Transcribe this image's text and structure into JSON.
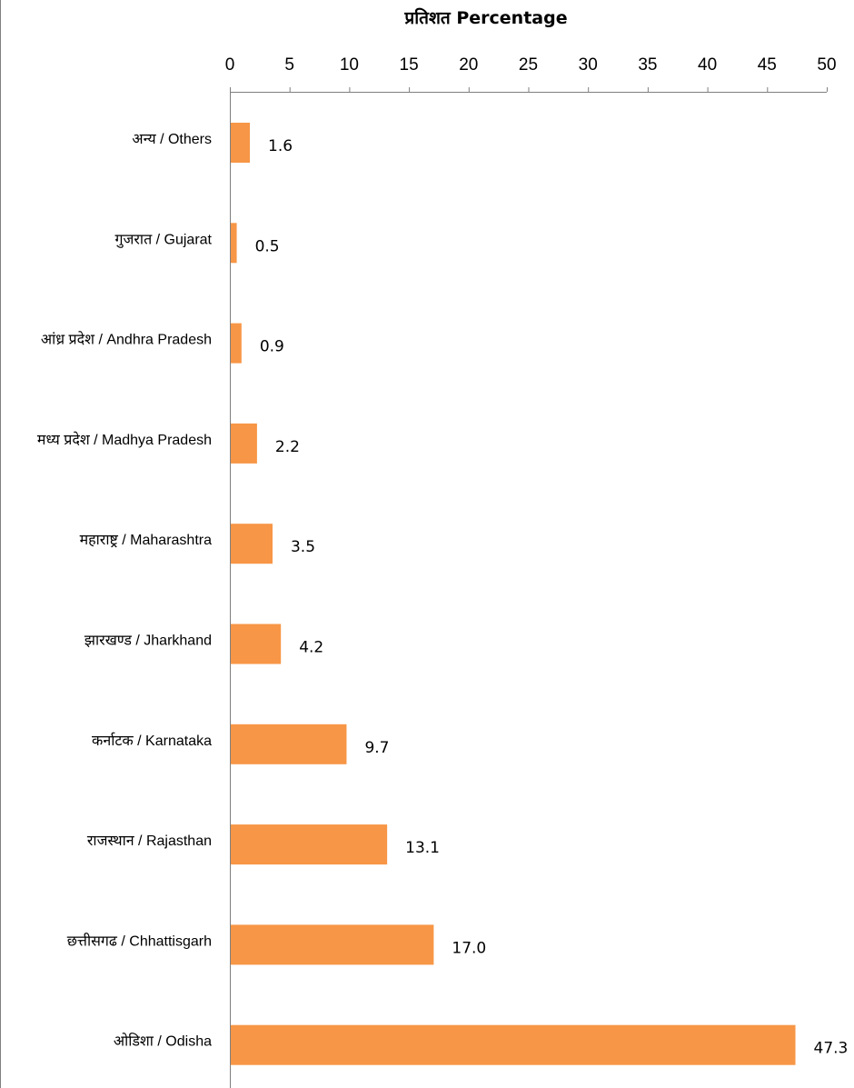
{
  "chart_data": {
    "type": "bar",
    "orientation": "horizontal",
    "title": "",
    "xlabel": "प्रतिशत Percentage",
    "ylabel": "",
    "xlim": [
      0,
      50
    ],
    "x_ticks": [
      "0",
      "5",
      "10",
      "15",
      "20",
      "25",
      "30",
      "35",
      "40",
      "45",
      "50"
    ],
    "x_axis_position": "top",
    "grid": false,
    "legend": "none",
    "bar_color": "#f79646",
    "categories": [
      "अन्य / Others",
      "गुजरात / Gujarat",
      "आंध्र प्रदेश / Andhra Pradesh",
      "मध्य प्रदेश  / Madhya Pradesh",
      "महाराष्ट्र / Maharashtra",
      "झारखण्ड / Jharkhand",
      "कर्नाटक / Karnataka",
      "राजस्थान / Rajasthan",
      "छत्तीसगढ / Chhattisgarh",
      "ओडिशा / Odisha"
    ],
    "values": [
      1.6,
      0.5,
      0.9,
      2.2,
      3.5,
      4.2,
      9.7,
      13.1,
      17.0,
      47.3
    ],
    "data_labels": [
      "1.6",
      "0.5",
      "0.9",
      "2.2",
      "3.5",
      "4.2",
      "9.7",
      "13.1",
      "17.0",
      "47.3"
    ]
  }
}
